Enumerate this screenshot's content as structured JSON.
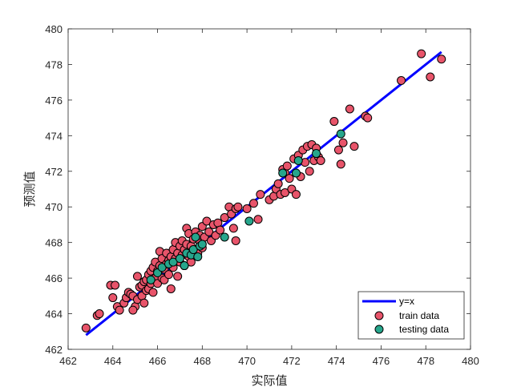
{
  "chart_data": {
    "type": "scatter",
    "xlabel": "实际值",
    "ylabel": "预测值",
    "xlim": [
      462,
      480
    ],
    "ylim": [
      462,
      480
    ],
    "xticks": [
      462,
      464,
      466,
      468,
      470,
      472,
      474,
      476,
      478,
      480
    ],
    "yticks": [
      462,
      464,
      466,
      468,
      470,
      472,
      474,
      476,
      478,
      480
    ],
    "grid": false,
    "box": true,
    "legend_position": "bottom-right",
    "line": {
      "name": "y=x",
      "x": [
        462.8,
        478.7
      ],
      "y": [
        462.8,
        478.7
      ],
      "color": "#0000ff"
    },
    "series": [
      {
        "name": "train data",
        "marker": "circle",
        "color": "#e8546a",
        "points": [
          [
            462.8,
            463.2
          ],
          [
            463.3,
            463.9
          ],
          [
            463.4,
            464.0
          ],
          [
            463.9,
            465.6
          ],
          [
            464.1,
            465.6
          ],
          [
            464.0,
            464.9
          ],
          [
            464.2,
            464.4
          ],
          [
            464.3,
            464.2
          ],
          [
            464.5,
            464.6
          ],
          [
            464.6,
            464.9
          ],
          [
            464.7,
            465.2
          ],
          [
            464.8,
            465.1
          ],
          [
            464.9,
            465.0
          ],
          [
            465.0,
            464.4
          ],
          [
            464.9,
            464.2
          ],
          [
            465.1,
            464.8
          ],
          [
            465.1,
            466.1
          ],
          [
            465.2,
            465.5
          ],
          [
            465.3,
            465.6
          ],
          [
            465.3,
            465.0
          ],
          [
            465.4,
            465.8
          ],
          [
            465.4,
            464.6
          ],
          [
            465.5,
            465.3
          ],
          [
            465.5,
            465.9
          ],
          [
            465.6,
            466.2
          ],
          [
            465.6,
            465.4
          ],
          [
            465.7,
            466.4
          ],
          [
            465.7,
            465.7
          ],
          [
            465.8,
            466.6
          ],
          [
            465.8,
            465.2
          ],
          [
            465.9,
            466.0
          ],
          [
            465.9,
            466.9
          ],
          [
            466.0,
            466.4
          ],
          [
            466.0,
            465.7
          ],
          [
            466.1,
            467.5
          ],
          [
            466.1,
            466.7
          ],
          [
            466.2,
            466.0
          ],
          [
            466.2,
            467.1
          ],
          [
            466.3,
            466.5
          ],
          [
            466.3,
            465.9
          ],
          [
            466.4,
            466.8
          ],
          [
            466.4,
            467.4
          ],
          [
            466.5,
            466.2
          ],
          [
            466.5,
            467.0
          ],
          [
            466.6,
            465.4
          ],
          [
            466.6,
            467.2
          ],
          [
            466.7,
            467.6
          ],
          [
            466.7,
            466.6
          ],
          [
            466.8,
            468.0
          ],
          [
            466.8,
            467.1
          ],
          [
            466.9,
            466.1
          ],
          [
            466.9,
            467.4
          ],
          [
            467.0,
            467.8
          ],
          [
            467.0,
            466.9
          ],
          [
            467.1,
            468.1
          ],
          [
            467.1,
            467.3
          ],
          [
            467.2,
            467.6
          ],
          [
            467.2,
            466.7
          ],
          [
            467.3,
            468.8
          ],
          [
            467.3,
            467.9
          ],
          [
            467.4,
            467.2
          ],
          [
            467.4,
            468.5
          ],
          [
            467.5,
            467.8
          ],
          [
            467.5,
            466.9
          ],
          [
            467.6,
            468.2
          ],
          [
            467.7,
            467.6
          ],
          [
            467.7,
            468.6
          ],
          [
            467.8,
            467.4
          ],
          [
            467.9,
            468.0
          ],
          [
            467.9,
            468.4
          ],
          [
            468.0,
            467.7
          ],
          [
            468.0,
            468.9
          ],
          [
            468.1,
            468.3
          ],
          [
            468.2,
            469.2
          ],
          [
            468.3,
            468.6
          ],
          [
            468.4,
            468.1
          ],
          [
            468.5,
            469.0
          ],
          [
            468.6,
            468.4
          ],
          [
            468.7,
            469.1
          ],
          [
            468.8,
            468.7
          ],
          [
            469.0,
            469.4
          ],
          [
            469.2,
            470.0
          ],
          [
            469.3,
            469.6
          ],
          [
            469.4,
            468.8
          ],
          [
            469.5,
            469.9
          ],
          [
            469.5,
            468.1
          ],
          [
            469.6,
            470.0
          ],
          [
            470.0,
            469.9
          ],
          [
            470.3,
            470.2
          ],
          [
            470.5,
            469.3
          ],
          [
            470.6,
            470.7
          ],
          [
            471.0,
            470.4
          ],
          [
            471.2,
            470.6
          ],
          [
            471.3,
            471.0
          ],
          [
            471.4,
            471.3
          ],
          [
            471.5,
            470.7
          ],
          [
            471.6,
            472.1
          ],
          [
            471.7,
            471.9
          ],
          [
            471.7,
            470.8
          ],
          [
            471.8,
            472.3
          ],
          [
            471.9,
            471.6
          ],
          [
            472.0,
            471.0
          ],
          [
            472.1,
            472.7
          ],
          [
            472.2,
            470.7
          ],
          [
            472.3,
            472.9
          ],
          [
            472.4,
            471.7
          ],
          [
            472.5,
            473.2
          ],
          [
            472.6,
            472.5
          ],
          [
            472.7,
            473.4
          ],
          [
            472.8,
            472.0
          ],
          [
            472.9,
            473.5
          ],
          [
            473.0,
            472.6
          ],
          [
            473.1,
            473.3
          ],
          [
            473.2,
            472.8
          ],
          [
            473.3,
            472.6
          ],
          [
            473.9,
            474.8
          ],
          [
            474.1,
            473.2
          ],
          [
            474.2,
            472.4
          ],
          [
            474.3,
            473.6
          ],
          [
            474.6,
            475.5
          ],
          [
            474.8,
            473.4
          ],
          [
            475.3,
            475.1
          ],
          [
            475.4,
            475.0
          ],
          [
            476.9,
            477.1
          ],
          [
            477.8,
            478.6
          ],
          [
            478.2,
            477.3
          ],
          [
            478.7,
            478.3
          ]
        ]
      },
      {
        "name": "testing data",
        "marker": "circle",
        "color": "#26a68c",
        "points": [
          [
            465.7,
            465.9
          ],
          [
            466.0,
            466.3
          ],
          [
            466.2,
            466.6
          ],
          [
            466.5,
            466.8
          ],
          [
            466.7,
            466.9
          ],
          [
            467.0,
            467.1
          ],
          [
            467.2,
            466.7
          ],
          [
            467.3,
            467.4
          ],
          [
            467.5,
            467.3
          ],
          [
            467.6,
            467.6
          ],
          [
            467.7,
            468.3
          ],
          [
            467.8,
            467.2
          ],
          [
            467.9,
            467.8
          ],
          [
            468.0,
            467.9
          ],
          [
            469.0,
            468.3
          ],
          [
            470.1,
            469.2
          ],
          [
            471.6,
            471.9
          ],
          [
            472.2,
            471.9
          ],
          [
            472.3,
            472.6
          ],
          [
            473.1,
            473.0
          ],
          [
            474.2,
            474.1
          ]
        ]
      }
    ]
  }
}
